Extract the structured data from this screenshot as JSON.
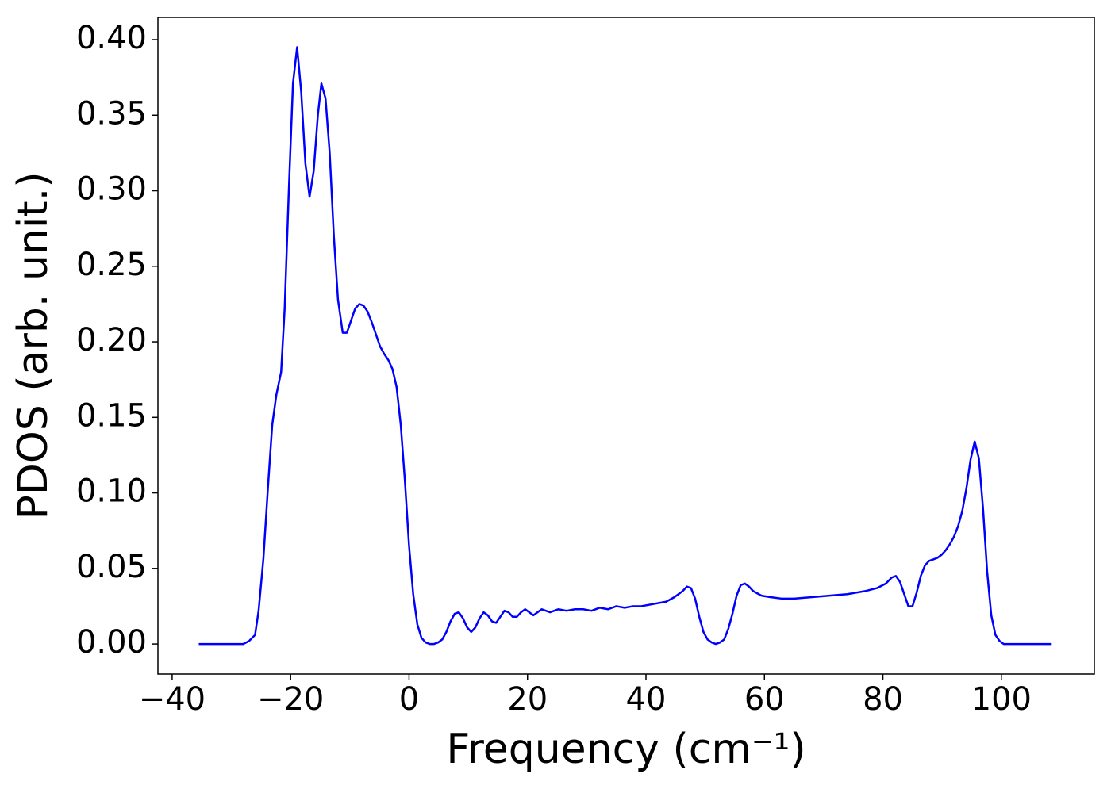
{
  "chart_data": {
    "type": "line",
    "xlabel": "Frequency (cm⁻¹)",
    "ylabel": "PDOS (arb. unit.)",
    "xlim": [
      -42.4,
      115.7
    ],
    "ylim": [
      -0.0199,
      0.4147
    ],
    "xticks": [
      {
        "value": -40,
        "label": "−40"
      },
      {
        "value": -20,
        "label": "−20"
      },
      0,
      20,
      40,
      60,
      80,
      100
    ],
    "yticks": [
      {
        "value": 0,
        "label": "0.00"
      },
      0.05,
      {
        "value": 0.1,
        "label": "0.10"
      },
      0.15,
      {
        "value": 0.2,
        "label": "0.20"
      },
      0.25,
      {
        "value": 0.3,
        "label": "0.30"
      },
      0.35,
      {
        "value": 0.4,
        "label": "0.40"
      }
    ],
    "series": [
      {
        "color": "#0000ff",
        "x": [
          -35.5,
          -30,
          -28,
          -27,
          -26,
          -25.4,
          -24.6,
          -23.8,
          -23.1,
          -22.4,
          -21.6,
          -21.0,
          -20.3,
          -19.6,
          -18.9,
          -18.2,
          -17.5,
          -16.8,
          -16.1,
          -15.4,
          -14.8,
          -14.1,
          -13.4,
          -12.7,
          -12.0,
          -11.2,
          -10.5,
          -9.8,
          -9.1,
          -8.4,
          -7.7,
          -7.0,
          -6.3,
          -5.6,
          -4.9,
          -4.2,
          -3.5,
          -2.8,
          -2.1,
          -1.4,
          -0.7,
          0.0,
          0.7,
          1.4,
          2.1,
          2.8,
          3.5,
          4.2,
          4.9,
          5.6,
          6.3,
          7.0,
          7.7,
          8.4,
          9.1,
          9.8,
          10.5,
          11.2,
          11.9,
          12.6,
          13.3,
          14.0,
          14.7,
          15.4,
          16.1,
          16.8,
          17.5,
          18.2,
          18.9,
          19.6,
          20.3,
          21.0,
          22.4,
          23.8,
          25.2,
          26.6,
          28,
          29.4,
          30.8,
          32.2,
          33.6,
          35,
          36.4,
          37.8,
          39.2,
          40.6,
          42,
          43.4,
          44.8,
          46.2,
          46.9,
          47.6,
          48.3,
          49.0,
          49.7,
          50.4,
          51.1,
          51.8,
          52.5,
          53.2,
          53.9,
          54.6,
          55.3,
          56.0,
          56.7,
          57.4,
          58.1,
          59.5,
          61,
          63,
          65,
          68,
          71,
          74,
          77,
          79,
          80.5,
          81.5,
          82.2,
          82.9,
          83.6,
          84.3,
          85.0,
          85.7,
          86.4,
          87.1,
          87.8,
          88.5,
          89.2,
          89.9,
          90.6,
          91.3,
          92.0,
          92.7,
          93.4,
          94.1,
          94.8,
          95.5,
          96.2,
          96.9,
          97.6,
          98.3,
          99.0,
          99.7,
          100.4,
          101.1,
          108.5
        ],
        "values": [
          0,
          0,
          0,
          0.002,
          0.006,
          0.022,
          0.056,
          0.105,
          0.145,
          0.165,
          0.18,
          0.222,
          0.3,
          0.371,
          0.395,
          0.365,
          0.318,
          0.296,
          0.313,
          0.35,
          0.371,
          0.361,
          0.325,
          0.27,
          0.228,
          0.206,
          0.206,
          0.214,
          0.222,
          0.225,
          0.224,
          0.22,
          0.213,
          0.205,
          0.197,
          0.192,
          0.188,
          0.182,
          0.17,
          0.145,
          0.108,
          0.065,
          0.033,
          0.013,
          0.004,
          0.001,
          0,
          0,
          0.001,
          0.003,
          0.008,
          0.015,
          0.02,
          0.021,
          0.017,
          0.011,
          0.008,
          0.011,
          0.017,
          0.021,
          0.019,
          0.015,
          0.014,
          0.018,
          0.022,
          0.021,
          0.018,
          0.018,
          0.021,
          0.023,
          0.021,
          0.019,
          0.023,
          0.021,
          0.023,
          0.022,
          0.023,
          0.023,
          0.022,
          0.024,
          0.023,
          0.025,
          0.024,
          0.025,
          0.025,
          0.026,
          0.027,
          0.028,
          0.031,
          0.035,
          0.038,
          0.037,
          0.03,
          0.018,
          0.008,
          0.003,
          0.001,
          0,
          0.001,
          0.003,
          0.01,
          0.02,
          0.032,
          0.039,
          0.04,
          0.038,
          0.035,
          0.032,
          0.031,
          0.03,
          0.03,
          0.031,
          0.032,
          0.033,
          0.035,
          0.037,
          0.04,
          0.044,
          0.045,
          0.041,
          0.033,
          0.025,
          0.025,
          0.034,
          0.045,
          0.052,
          0.055,
          0.056,
          0.057,
          0.059,
          0.062,
          0.066,
          0.071,
          0.078,
          0.088,
          0.103,
          0.122,
          0.134,
          0.123,
          0.09,
          0.048,
          0.019,
          0.006,
          0.002,
          0,
          0,
          0
        ]
      }
    ]
  }
}
